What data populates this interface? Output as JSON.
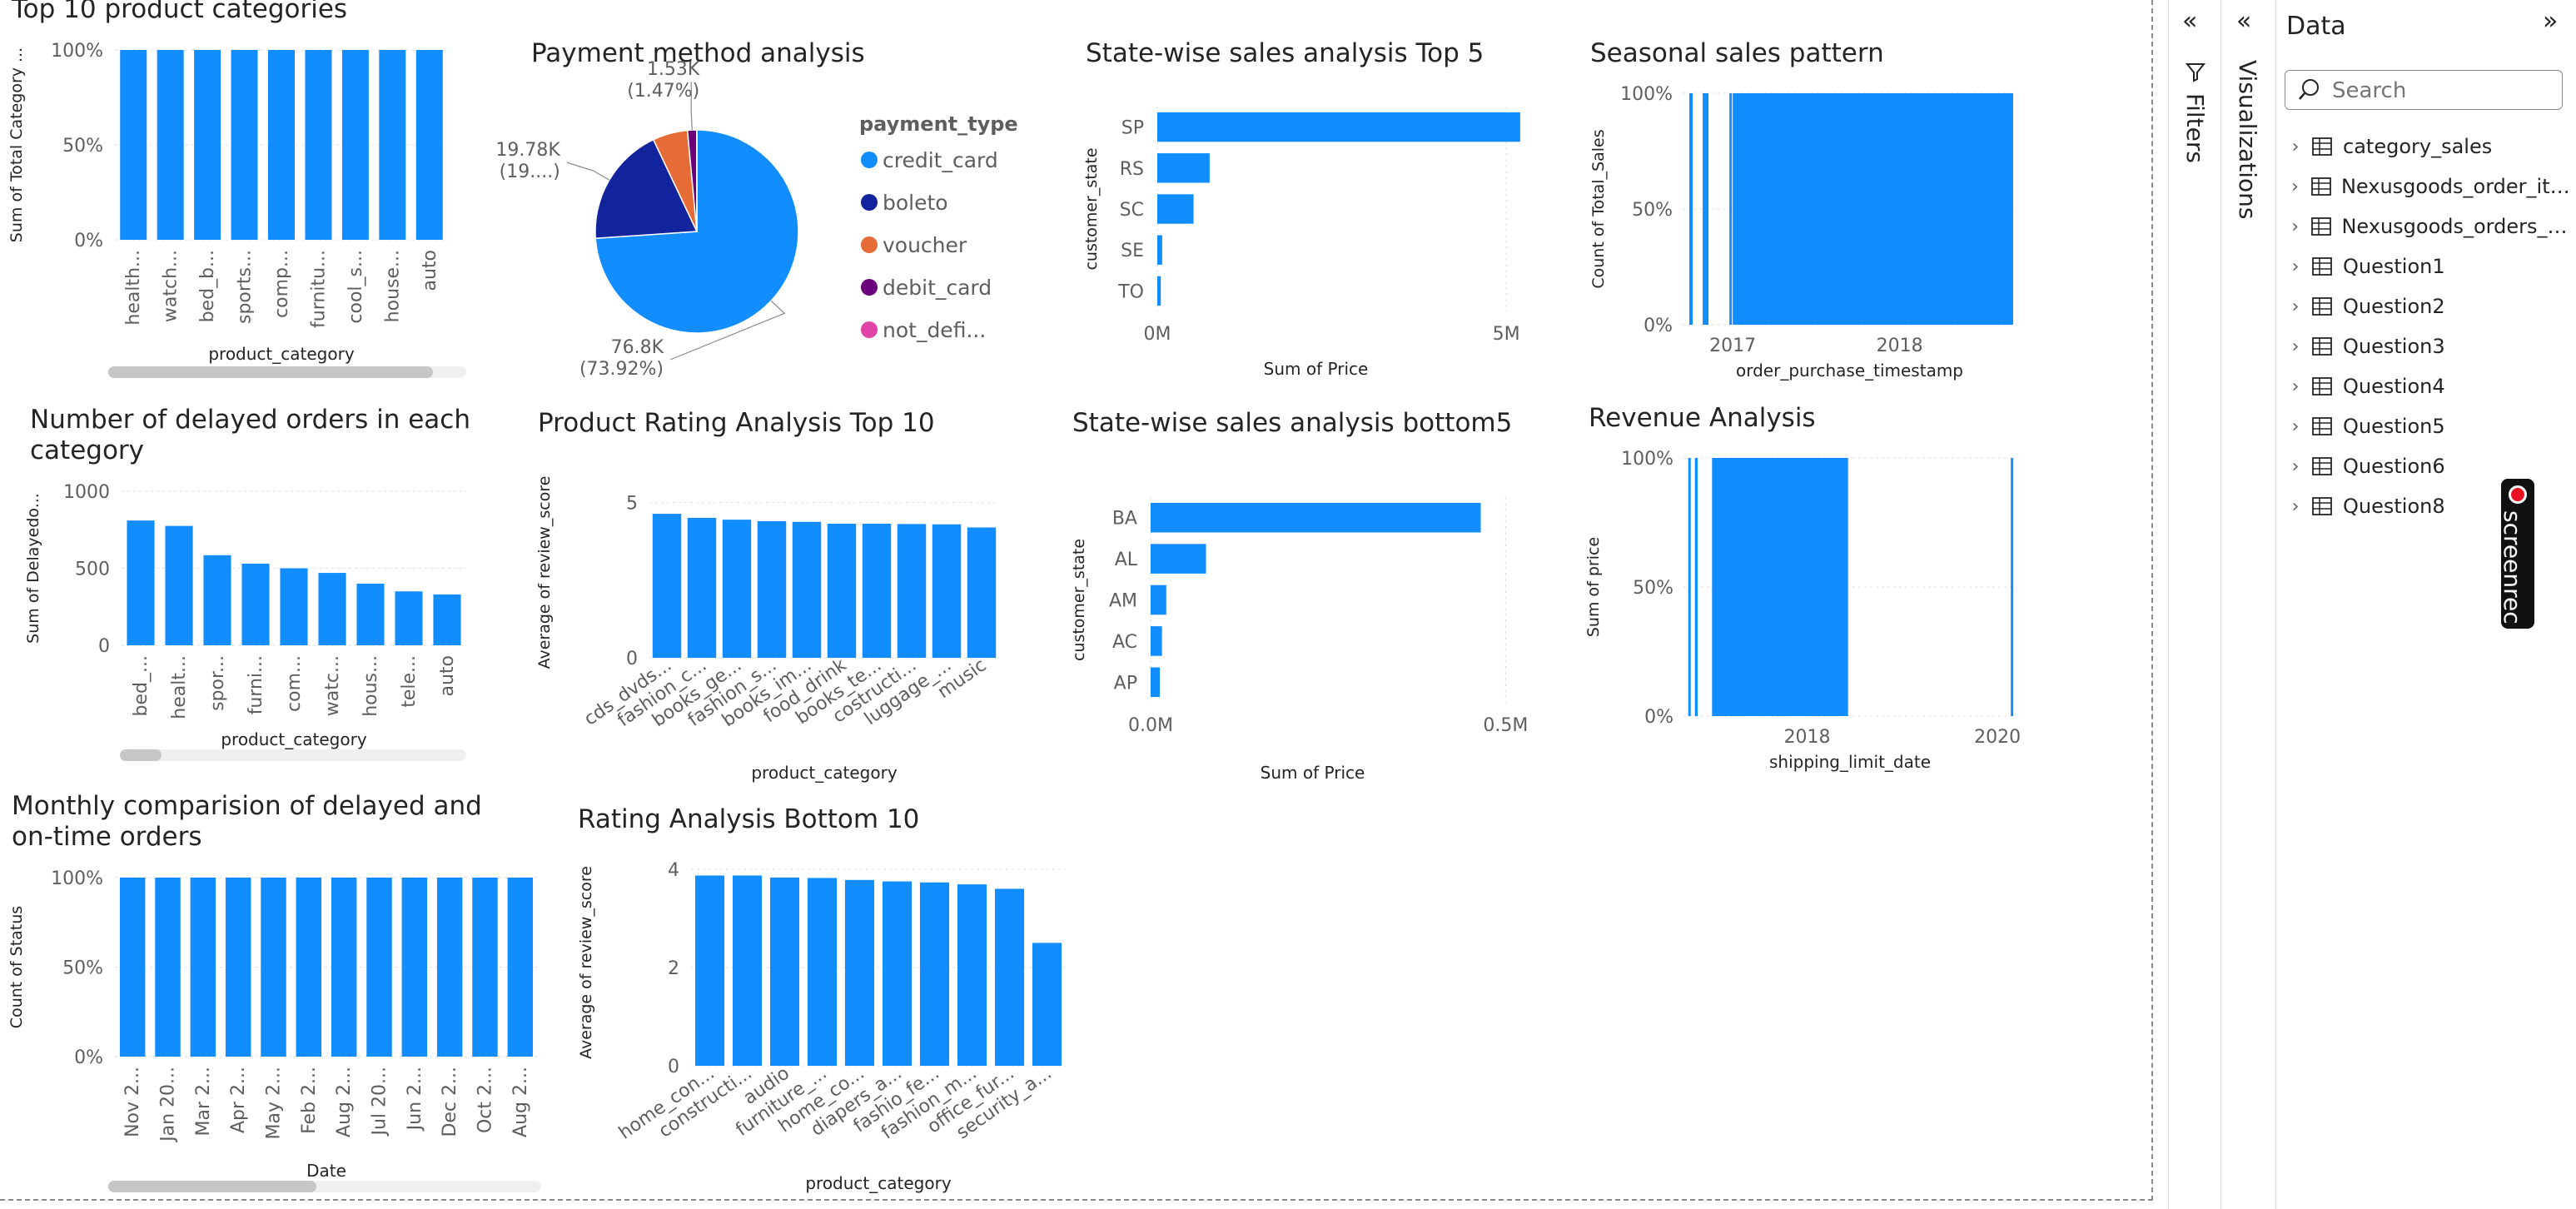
{
  "colors": {
    "bar": "#118dff",
    "axis_text": "#605e5c",
    "title": "#252423",
    "grid": "#e1dfdd",
    "scroll_track": "#f0f0f0",
    "scroll_thumb": "#c8c6c4"
  },
  "visuals": {
    "top10": {
      "title": "Top 10 product categories",
      "chart_data": {
        "type": "bar",
        "categories": [
          "health...",
          "watch...",
          "bed_b...",
          "sports...",
          "comp...",
          "furnitu...",
          "cool_s...",
          "house...",
          "auto"
        ],
        "values": [
          100,
          100,
          100,
          100,
          100,
          100,
          100,
          100,
          100
        ],
        "yticks": [
          "0%",
          "50%",
          "100%"
        ],
        "ylim": [
          0,
          100
        ],
        "xlabel": "product_category",
        "ylabel": "Sum of Total Category ..."
      }
    },
    "payment": {
      "title": "Payment method analysis",
      "chart_data": {
        "type": "pie",
        "slices": [
          {
            "name": "credit_card",
            "value": 76.8,
            "color": "#118dff",
            "label_line1": "76.8K",
            "label_line2": "(73.92%)"
          },
          {
            "name": "boleto",
            "value": 19.78,
            "color": "#12239e",
            "label_line1": "19.78K",
            "label_line2": "(19....)"
          },
          {
            "name": "voucher",
            "value": 5.77,
            "color": "#e66c37",
            "label_line1": "",
            "label_line2": ""
          },
          {
            "name": "debit_card",
            "value": 1.53,
            "color": "#6b007b",
            "label_line1": "1.53K",
            "label_line2": "(1.47%)"
          },
          {
            "name": "not_defi...",
            "value": 0.01,
            "color": "#e044a7",
            "label_line1": "",
            "label_line2": ""
          }
        ],
        "legend_title": "payment_type"
      }
    },
    "state_top5": {
      "title": "State-wise sales analysis Top 5",
      "chart_data": {
        "type": "bar",
        "orientation": "horizontal",
        "categories": [
          "SP",
          "RS",
          "SC",
          "SE",
          "TO"
        ],
        "values": [
          5.2,
          0.75,
          0.52,
          0.07,
          0.05
        ],
        "xlim": [
          0,
          5.5
        ],
        "xticks": [
          {
            "v": 0,
            "label": "0M"
          },
          {
            "v": 5,
            "label": "5M"
          }
        ],
        "xlabel": "Sum of Price",
        "ylabel": "customer_state"
      }
    },
    "seasonal": {
      "title": "Seasonal sales pattern",
      "chart_data": {
        "type": "bar",
        "note": "dense daily columns, each at 100%",
        "yticks": [
          "0%",
          "50%",
          "100%"
        ],
        "ylim": [
          0,
          100
        ],
        "xticks": [
          {
            "v": 2017,
            "label": "2017"
          },
          {
            "v": 2018,
            "label": "2018"
          }
        ],
        "xlim": [
          2016.7,
          2018.7
        ],
        "filled_ranges": [
          [
            2016.74,
            2016.76
          ],
          [
            2016.82,
            2016.855
          ],
          [
            2016.98,
            2016.99
          ],
          [
            2017.0,
            2018.68
          ]
        ],
        "xlabel": "order_purchase_timestamp",
        "ylabel": "Count of Total_Sales"
      }
    },
    "delayed": {
      "title": "Number of delayed orders in each category",
      "chart_data": {
        "type": "bar",
        "categories": [
          "bed_...",
          "healt...",
          "spor...",
          "furni...",
          "com...",
          "watc...",
          "hous...",
          "tele...",
          "auto"
        ],
        "values": [
          810,
          775,
          585,
          530,
          500,
          470,
          400,
          350,
          330
        ],
        "ylim": [
          0,
          1000
        ],
        "yticks": [
          0,
          500,
          1000
        ],
        "xlabel": "product_category",
        "ylabel": "Sum of Delayedo..."
      }
    },
    "rating_top10": {
      "title": "Product Rating Analysis Top 10",
      "chart_data": {
        "type": "bar",
        "categories": [
          "cds_dvds...",
          "fashion_c...",
          "books_ge...",
          "fashion_s...",
          "books_im...",
          "food_drink",
          "books_te...",
          "costructi...",
          "luggage_...",
          "music"
        ],
        "values": [
          4.64,
          4.51,
          4.45,
          4.4,
          4.38,
          4.32,
          4.32,
          4.31,
          4.3,
          4.2
        ],
        "ylim": [
          0,
          5.5
        ],
        "yticks": [
          0,
          5
        ],
        "xlabel": "product_category",
        "ylabel": "Average of review_score"
      }
    },
    "state_bottom5": {
      "title": "State-wise sales analysis bottom5",
      "chart_data": {
        "type": "bar",
        "orientation": "horizontal",
        "categories": [
          "BA",
          "AL",
          "AM",
          "AC",
          "AP"
        ],
        "values": [
          0.465,
          0.078,
          0.022,
          0.016,
          0.013
        ],
        "xlim": [
          0,
          0.55
        ],
        "xticks": [
          {
            "v": 0,
            "label": "0.0M"
          },
          {
            "v": 0.5,
            "label": "0.5M"
          }
        ],
        "xlabel": "Sum of Price",
        "ylabel": "customer_state"
      }
    },
    "revenue": {
      "title": "Revenue Analysis",
      "chart_data": {
        "type": "bar",
        "note": "dense daily columns, each at 100%",
        "yticks": [
          "0%",
          "50%",
          "100%"
        ],
        "ylim": [
          0,
          100
        ],
        "xticks": [
          {
            "v": 2018,
            "label": "2018"
          },
          {
            "v": 2020,
            "label": "2020"
          }
        ],
        "xlim": [
          2016.7,
          2020.2
        ],
        "filled_ranges": [
          [
            2016.75,
            2016.77
          ],
          [
            2016.82,
            2016.85
          ],
          [
            2017.0,
            2018.43
          ],
          [
            2020.14,
            2020.16
          ]
        ],
        "xlabel": "shipping_limit_date",
        "ylabel": "Sum of price"
      }
    },
    "monthly": {
      "title": "Monthly comparision of delayed and on-time orders",
      "chart_data": {
        "type": "bar",
        "categories": [
          "Nov 2...",
          "Jan 20...",
          "Mar 2...",
          "Apr 2...",
          "May 2...",
          "Feb 2...",
          "Aug 2...",
          "Jul 20...",
          "Jun 2...",
          "Dec 2...",
          "Oct 2...",
          "Aug 2..."
        ],
        "values": [
          100,
          100,
          100,
          100,
          100,
          100,
          100,
          100,
          100,
          100,
          100,
          100
        ],
        "yticks": [
          "0%",
          "50%",
          "100%"
        ],
        "ylim": [
          0,
          100
        ],
        "xlabel": "Date",
        "ylabel": "Count of Status"
      }
    },
    "rating_bottom10": {
      "title": "Rating Analysis Bottom 10",
      "chart_data": {
        "type": "bar",
        "categories": [
          "home_con...",
          "constructi...",
          "audio",
          "furniture_...",
          "home_co...",
          "diapers_a...",
          "fashio_fe...",
          "fashion_m...",
          "office_fur...",
          "security_a..."
        ],
        "values": [
          3.87,
          3.87,
          3.83,
          3.82,
          3.78,
          3.75,
          3.73,
          3.69,
          3.6,
          2.5
        ],
        "ylim": [
          0,
          4.2
        ],
        "yticks": [
          0,
          2,
          4
        ],
        "xlabel": "product_category",
        "ylabel": "Average of review_score"
      }
    }
  },
  "panes": {
    "filters_label": "Filters",
    "visualizations_label": "Visualizations",
    "data": {
      "title": "Data",
      "search_placeholder": "Search",
      "items": [
        {
          "label": "category_sales",
          "icon": "calculator-table-icon"
        },
        {
          "label": "Nexusgoods_order_ite...",
          "icon": "table-icon"
        },
        {
          "label": "Nexusgoods_orders_d...",
          "icon": "table-icon"
        },
        {
          "label": "Question1",
          "icon": "table-icon"
        },
        {
          "label": "Question2",
          "icon": "table-icon"
        },
        {
          "label": "Question3",
          "icon": "table-icon"
        },
        {
          "label": "Question4",
          "icon": "table-icon"
        },
        {
          "label": "Question5",
          "icon": "table-icon"
        },
        {
          "label": "Question6",
          "icon": "table-icon"
        },
        {
          "label": "Question8",
          "icon": "table-icon"
        }
      ]
    }
  },
  "overlay": {
    "screenrec_label": "screenrec"
  }
}
